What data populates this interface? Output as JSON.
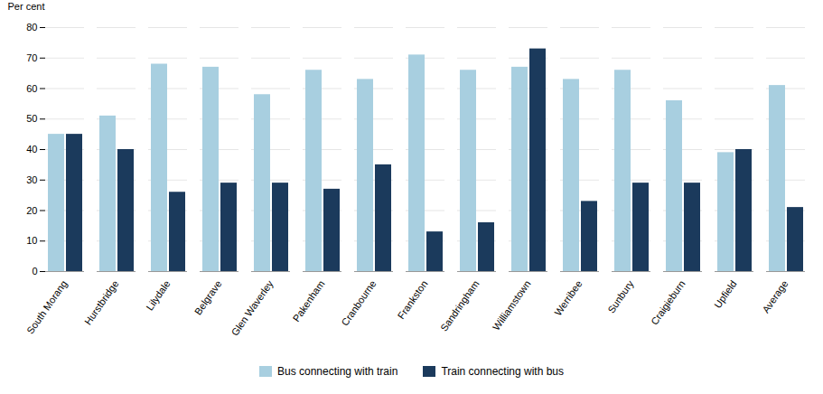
{
  "chart_data": {
    "type": "bar",
    "ylabel": "Per cent",
    "categories": [
      "South Morang",
      "Hurstbridge",
      "Lilydale",
      "Belgrave",
      "Glen Waverley",
      "Pakenham",
      "Cranbourne",
      "Frankston",
      "Sandringham",
      "Williamstown",
      "Werribee",
      "Sunbury",
      "Craigieburn",
      "Upfield",
      "Average"
    ],
    "series": [
      {
        "name": "Bus connecting with train",
        "color": "#a8cfe0",
        "values": [
          45,
          51,
          68,
          67,
          58,
          66,
          63,
          71,
          66,
          67,
          63,
          66,
          56,
          39,
          61
        ]
      },
      {
        "name": "Train connecting with bus",
        "color": "#1b3a5c",
        "values": [
          45,
          40,
          26,
          29,
          29,
          27,
          35,
          13,
          16,
          73,
          23,
          29,
          29,
          40,
          21
        ]
      }
    ],
    "ylim": [
      0,
      80
    ],
    "yticks": [
      0,
      10,
      20,
      30,
      40,
      50,
      60,
      70,
      80
    ],
    "grid": true,
    "legend": "bottom"
  }
}
